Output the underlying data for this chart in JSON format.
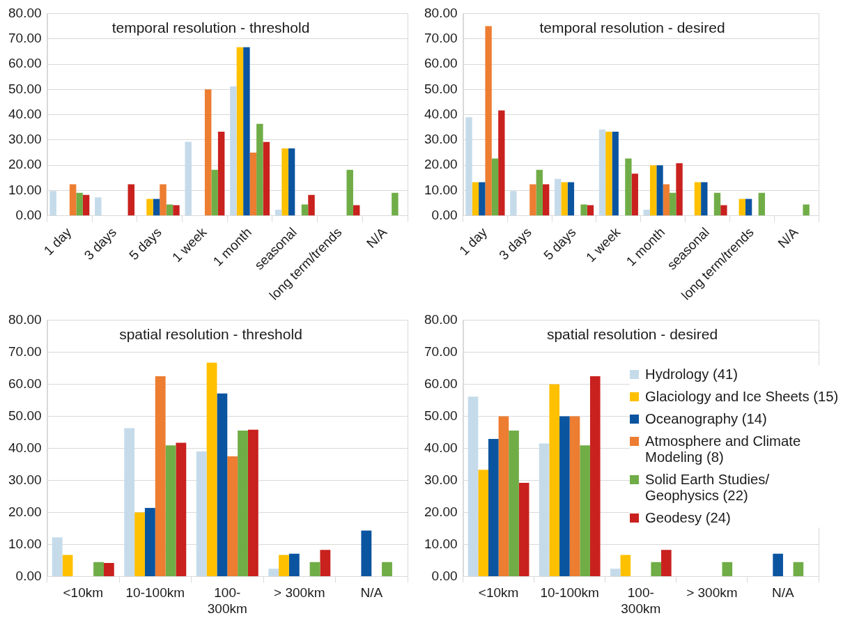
{
  "chart_data": [
    {
      "type": "bar",
      "title": "temporal resolution - threshold",
      "categories": [
        "1 day",
        "3 days",
        "5 days",
        "1 week",
        "1 month",
        "seasonal",
        "long term/trends",
        "N/A"
      ],
      "series": [
        {
          "color": "#c6dbea",
          "values": [
            9.8,
            7.3,
            0,
            29.3,
            51.2,
            2.4,
            0,
            0
          ]
        },
        {
          "color": "#ffc000",
          "values": [
            0,
            0,
            6.7,
            0,
            66.7,
            26.7,
            0,
            0
          ]
        },
        {
          "color": "#0b54a0",
          "values": [
            0,
            0,
            6.7,
            0,
            66.7,
            26.7,
            0,
            0
          ]
        },
        {
          "color": "#ed7d31",
          "values": [
            12.5,
            0,
            12.5,
            50,
            25,
            0,
            0,
            0
          ]
        },
        {
          "color": "#70ad47",
          "values": [
            9.1,
            0,
            4.5,
            18.2,
            36.4,
            4.5,
            18.2,
            9.1
          ]
        },
        {
          "color": "#c9211e",
          "values": [
            8.3,
            12.5,
            4.2,
            33.3,
            29.2,
            8.3,
            4.2,
            0
          ]
        }
      ],
      "ylim": [
        0,
        80
      ],
      "yticks": [
        {
          "value": 0,
          "label": "0.00"
        },
        {
          "value": 10,
          "label": "10.00"
        },
        {
          "value": 20,
          "label": "20.00"
        },
        {
          "value": 30,
          "label": "30.00"
        },
        {
          "value": 40,
          "label": "40.00"
        },
        {
          "value": 50,
          "label": "50.00"
        },
        {
          "value": 60,
          "label": "60.00"
        },
        {
          "value": 70,
          "label": "70.00"
        },
        {
          "value": 80,
          "label": "80.00"
        }
      ],
      "grid": "y"
    },
    {
      "type": "bar",
      "title": "temporal resolution - desired",
      "categories": [
        "1 day",
        "3 days",
        "5 days",
        "1 week",
        "1 month",
        "seasonal",
        "long term/trends",
        "N/A"
      ],
      "series": [
        {
          "color": "#c6dbea",
          "values": [
            39.0,
            9.8,
            14.6,
            34.1,
            2.4,
            0,
            0,
            0
          ]
        },
        {
          "color": "#ffc000",
          "values": [
            13.3,
            0,
            13.3,
            33.3,
            20.0,
            13.3,
            6.7,
            0
          ]
        },
        {
          "color": "#0b54a0",
          "values": [
            13.3,
            0,
            13.3,
            33.3,
            20.0,
            13.3,
            6.7,
            0
          ]
        },
        {
          "color": "#ed7d31",
          "values": [
            75.0,
            12.5,
            0,
            0,
            12.5,
            0,
            0,
            0
          ]
        },
        {
          "color": "#70ad47",
          "values": [
            22.7,
            18.2,
            4.5,
            22.7,
            9.1,
            9.1,
            9.1,
            4.5
          ]
        },
        {
          "color": "#c9211e",
          "values": [
            41.7,
            12.5,
            4.2,
            16.7,
            20.8,
            4.2,
            0,
            0
          ]
        }
      ],
      "ylim": [
        0,
        80
      ],
      "yticks": [
        {
          "value": 0,
          "label": "0.00"
        },
        {
          "value": 10,
          "label": "10.00"
        },
        {
          "value": 20,
          "label": "20.00"
        },
        {
          "value": 30,
          "label": "30.00"
        },
        {
          "value": 40,
          "label": "40.00"
        },
        {
          "value": 50,
          "label": "50.00"
        },
        {
          "value": 60,
          "label": "60.00"
        },
        {
          "value": 70,
          "label": "70.00"
        },
        {
          "value": 80,
          "label": "80.00"
        }
      ],
      "grid": "y"
    },
    {
      "type": "bar",
      "title": "spatial resolution - threshold",
      "categories": [
        "<10km",
        "10-100km",
        "100-300km",
        "> 300km",
        "N/A"
      ],
      "series": [
        {
          "color": "#c6dbea",
          "values": [
            12.2,
            46.3,
            39.0,
            2.4,
            0
          ]
        },
        {
          "color": "#ffc000",
          "values": [
            6.7,
            20.0,
            66.7,
            6.7,
            0
          ]
        },
        {
          "color": "#0b54a0",
          "values": [
            0,
            21.4,
            57.1,
            7.1,
            14.3
          ]
        },
        {
          "color": "#ed7d31",
          "values": [
            0,
            62.5,
            37.5,
            0,
            0
          ]
        },
        {
          "color": "#70ad47",
          "values": [
            4.5,
            40.9,
            45.5,
            4.5,
            4.5
          ]
        },
        {
          "color": "#c9211e",
          "values": [
            4.2,
            41.7,
            45.8,
            8.3,
            0
          ]
        }
      ],
      "ylim": [
        0,
        80
      ],
      "yticks": [
        {
          "value": 0,
          "label": "0.00"
        },
        {
          "value": 10,
          "label": "10.00"
        },
        {
          "value": 20,
          "label": "20.00"
        },
        {
          "value": 30,
          "label": "30.00"
        },
        {
          "value": 40,
          "label": "40.00"
        },
        {
          "value": 50,
          "label": "50.00"
        },
        {
          "value": 60,
          "label": "60.00"
        },
        {
          "value": 70,
          "label": "70.00"
        },
        {
          "value": 80,
          "label": "80.00"
        }
      ],
      "grid": "y"
    },
    {
      "type": "bar",
      "title": "spatial resolution - desired",
      "categories": [
        "<10km",
        "10-100km",
        "100-300km",
        "> 300km",
        "N/A"
      ],
      "series": [
        {
          "name": "Hydrology (41)",
          "color": "#c6dbea",
          "values": [
            56.1,
            41.5,
            2.4,
            0,
            0
          ]
        },
        {
          "name": "Glaciology and Ice Sheets (15)",
          "color": "#ffc000",
          "values": [
            33.3,
            60.0,
            6.7,
            0,
            0
          ]
        },
        {
          "name": "Oceanography (14)",
          "color": "#0b54a0",
          "values": [
            42.9,
            50.0,
            0,
            0,
            7.1
          ]
        },
        {
          "name": "Atmosphere and Climate Modeling (8)",
          "color": "#ed7d31",
          "values": [
            50.0,
            50.0,
            0,
            0,
            0
          ]
        },
        {
          "name": "Solid Earth Studies/ Geophysics (22)",
          "color": "#70ad47",
          "values": [
            45.5,
            40.9,
            4.5,
            4.5,
            4.5
          ]
        },
        {
          "name": "Geodesy (24)",
          "color": "#c9211e",
          "values": [
            29.2,
            62.5,
            8.3,
            0,
            0
          ]
        }
      ],
      "ylim": [
        0,
        80
      ],
      "yticks": [
        {
          "value": 0,
          "label": "0.00"
        },
        {
          "value": 10,
          "label": "10.00"
        },
        {
          "value": 20,
          "label": "20.00"
        },
        {
          "value": 30,
          "label": "30.00"
        },
        {
          "value": 40,
          "label": "40.00"
        },
        {
          "value": 50,
          "label": "50.00"
        },
        {
          "value": 60,
          "label": "60.00"
        },
        {
          "value": 70,
          "label": "70.00"
        },
        {
          "value": 80,
          "label": "80.00"
        }
      ],
      "grid": "y",
      "legend": "right"
    }
  ]
}
